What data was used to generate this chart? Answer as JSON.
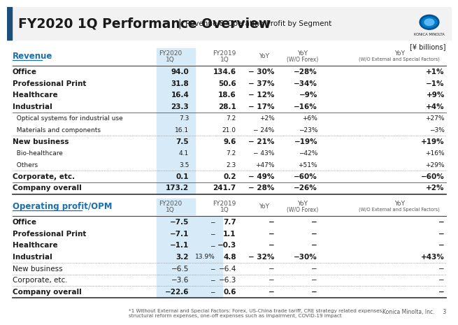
{
  "title_main": "FY2020 1Q Performance Overview",
  "title_sep": "|",
  "title_sub": " Revenue & Operating Profit by Segment",
  "yen_label": "[¥ billions]",
  "revenue_label": "Revenue",
  "revenue_rows": [
    [
      "Office",
      "94.0",
      "134.6",
      "− 30%",
      "−28%",
      "+1%"
    ],
    [
      "Professional Print",
      "31.8",
      "50.6",
      "− 37%",
      "−34%",
      "−1%"
    ],
    [
      "Healthcare",
      "16.4",
      "18.6",
      "− 12%",
      "−9%",
      "+9%"
    ],
    [
      "Industrial",
      "23.3",
      "28.1",
      "− 17%",
      "−16%",
      "+4%"
    ],
    [
      "  Optical systems for industrial use",
      "7.3",
      "7.2",
      "+2%",
      "+6%",
      "+27%"
    ],
    [
      "  Materials and components",
      "16.1",
      "21.0",
      "− 24%",
      "−23%",
      "−3%"
    ],
    [
      "New business",
      "7.5",
      "9.6",
      "− 21%",
      "−19%",
      "+19%"
    ],
    [
      "  Bio-healthcare",
      "4.1",
      "7.2",
      "− 43%",
      "−42%",
      "+16%"
    ],
    [
      "  Others",
      "3.5",
      "2.3",
      "+47%",
      "+51%",
      "+29%"
    ],
    [
      "Corporate, etc.",
      "0.1",
      "0.2",
      "− 49%",
      "−60%",
      "−60%"
    ],
    [
      "Company overall",
      "173.2",
      "241.7",
      "− 28%",
      "−26%",
      "+2%"
    ]
  ],
  "rev_bold_rows": [
    0,
    1,
    2,
    3,
    6,
    9,
    10
  ],
  "rev_sub_rows": [
    4,
    5,
    7,
    8
  ],
  "rev_heavy_sep_after": [
    10
  ],
  "rev_thin_sep_after": [
    3,
    9
  ],
  "rev_dotted_sep_after": [
    5,
    8
  ],
  "opprofit_label": "Operating profit/OPM",
  "opprofit_rows": [
    [
      "Office",
      "−7.5",
      "−",
      "7.7",
      "−",
      "−",
      "−"
    ],
    [
      "Professional Print",
      "−7.1",
      "−",
      "1.1",
      "−",
      "−",
      "−"
    ],
    [
      "Healthcare",
      "−1.1",
      "−",
      "−0.3",
      "−",
      "−",
      "−"
    ],
    [
      "Industrial",
      "3.2",
      "13.9%",
      "4.8",
      "− 32%",
      "−30%",
      "+43%"
    ],
    [
      "New business",
      "−6.5",
      "−",
      "−6.4",
      "−",
      "−",
      "−"
    ],
    [
      "Corporate, etc.",
      "−3.6",
      "−",
      "−6.3",
      "−",
      "−",
      "−"
    ],
    [
      "Company overall",
      "−22.6",
      "−",
      "0.6",
      "−",
      "−",
      "−"
    ]
  ],
  "op_bold_rows": [
    0,
    1,
    2,
    3,
    6
  ],
  "op_heavy_sep_after": [
    6
  ],
  "op_thin_sep_after": [
    3,
    4,
    5
  ],
  "op_dotted_sep_after": [
    3,
    4,
    5
  ],
  "footnote_left": "*1 Without External and Special Factors: Forex, US-China trade tariff, CRE strategy related expenses,\nstructural reform expenses, one-off expenses such as impairment, COVID-19 impact",
  "footnote_right": "Konica Minolta, Inc.     3",
  "bg_color": "#ffffff",
  "header_bg": "#d6eaf8",
  "title_bar_color": "#1a4f7a",
  "link_color": "#1a6fae",
  "text_color": "#1a1a1a",
  "dim_color": "#555555"
}
